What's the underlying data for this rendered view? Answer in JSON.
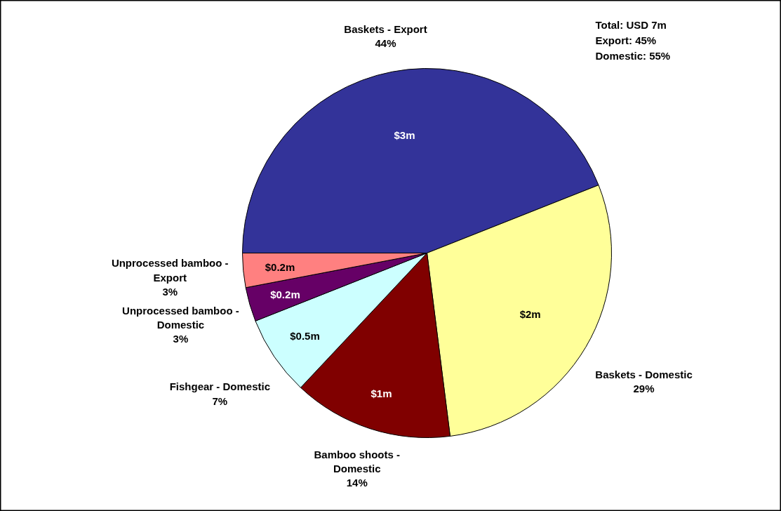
{
  "chart_data": {
    "type": "pie",
    "categories": [
      "Baskets - Export",
      "Baskets - Domestic",
      "Bamboo shoots -\nDomestic",
      "Fishgear - Domestic",
      "Unprocessed bamboo -\nDomestic",
      "Unprocessed bamboo -\nExport"
    ],
    "values": [
      44,
      29,
      14,
      7,
      3,
      3
    ],
    "colors": [
      "#333399",
      "#ffff99",
      "#800000",
      "#ccffff",
      "#660066",
      "#ff8080"
    ],
    "value_labels": [
      "44%",
      "29%",
      "14%",
      "7%",
      "3%",
      "3%"
    ],
    "annotations": [
      {
        "text": "$3m",
        "x": "Baskets - Export"
      },
      {
        "text": "$2m",
        "x": "Baskets - Domestic"
      },
      {
        "text": "$1m",
        "x": "Bamboo shoots -\nDomestic"
      },
      {
        "text": "$0.5m",
        "x": "Fishgear - Domestic"
      },
      {
        "text": "$0.2m",
        "x": "Unprocessed bamboo -\nDomestic"
      },
      {
        "text": "$0.2m",
        "x": "Unprocessed bamboo -\nExport"
      },
      "Total:        USD 7m",
      "Export:              45%",
      "Domestic:         55%"
    ]
  }
}
